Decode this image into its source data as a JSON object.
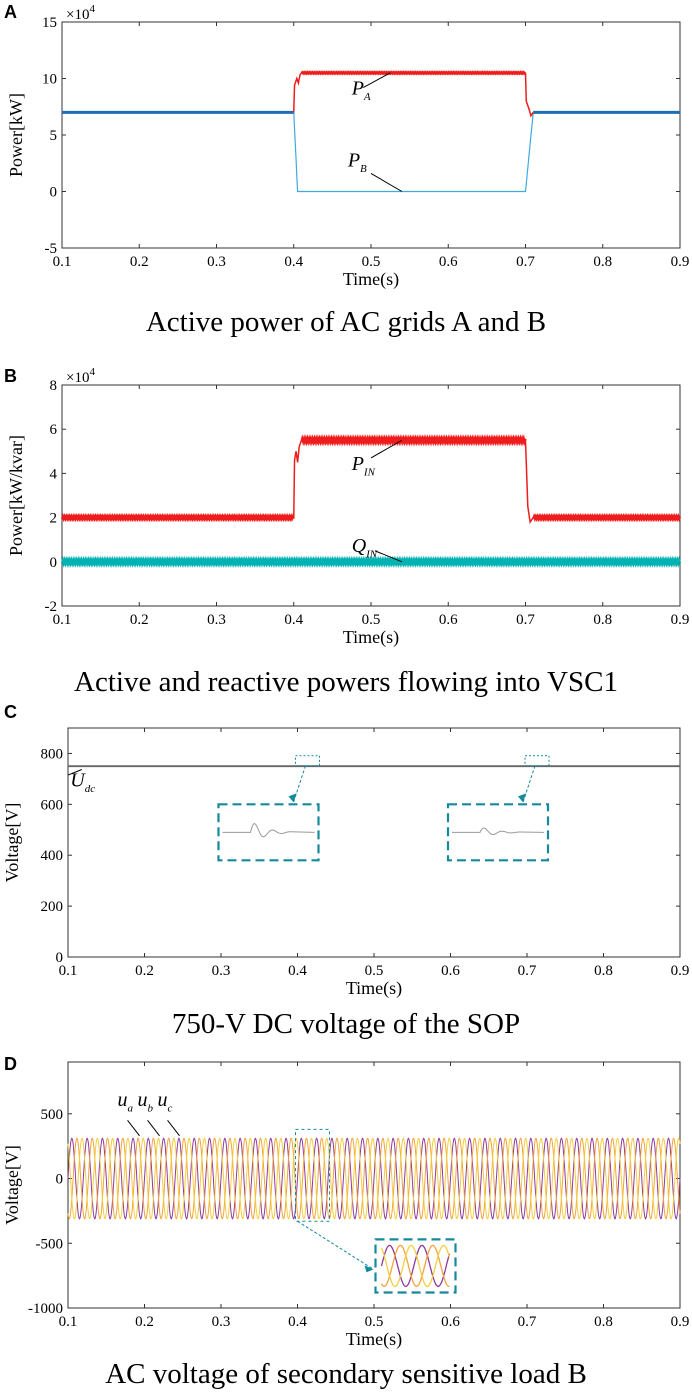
{
  "figure": {
    "panels": [
      {
        "letter": "A",
        "caption": "Active power of AC grids A and B"
      },
      {
        "letter": "B",
        "caption": "Active and reactive powers flowing into VSC1"
      },
      {
        "letter": "C",
        "caption": "750-V DC voltage of the SOP"
      },
      {
        "letter": "D",
        "caption": "AC voltage of secondary sensitive load B"
      }
    ]
  },
  "colors": {
    "red": "#ee1c1c",
    "blue": "#1f6fb5",
    "lightblue": "#3fa9e0",
    "cyan": "#00b2b2",
    "gray": "#666666",
    "teal": "#168a9c",
    "purple": "#8e3a9e",
    "orange": "#f4a43a",
    "yellow": "#f2cf3f"
  },
  "chart_data": [
    {
      "type": "line",
      "title": "Active power of AC grids A and B",
      "xlabel": "Time(s)",
      "ylabel": "Power[kW]",
      "xlim": [
        0.1,
        0.9
      ],
      "ylim": [
        -50000,
        150000
      ],
      "multiplier": "×10",
      "multiplier_exp": "4",
      "xticks": [
        "0.1",
        "0.2",
        "0.3",
        "0.4",
        "0.5",
        "0.6",
        "0.7",
        "0.8",
        "0.9"
      ],
      "yticks": [
        "-5",
        "0",
        "5",
        "10",
        "15"
      ],
      "series": [
        {
          "name": "P",
          "sub": "A",
          "x": [
            0.1,
            0.4,
            0.41,
            0.7,
            0.71,
            0.9
          ],
          "values": [
            70000,
            70000,
            105000,
            105000,
            70000,
            70000
          ]
        },
        {
          "name": "P",
          "sub": "B",
          "x": [
            0.1,
            0.4,
            0.405,
            0.7,
            0.71,
            0.9
          ],
          "values": [
            70000,
            70000,
            0,
            0,
            70000,
            70000
          ]
        }
      ]
    },
    {
      "type": "line",
      "title": "Active and reactive powers flowing into VSC1",
      "xlabel": "Time(s)",
      "ylabel": "Power[kW/kvar]",
      "xlim": [
        0.1,
        0.9
      ],
      "ylim": [
        -20000,
        80000
      ],
      "multiplier": "×10",
      "multiplier_exp": "4",
      "xticks": [
        "0.1",
        "0.2",
        "0.3",
        "0.4",
        "0.5",
        "0.6",
        "0.7",
        "0.8",
        "0.9"
      ],
      "yticks": [
        "-2",
        "0",
        "2",
        "4",
        "6",
        "8"
      ],
      "series": [
        {
          "name": "P",
          "sub": "IN",
          "x": [
            0.1,
            0.4,
            0.41,
            0.7,
            0.71,
            0.9
          ],
          "values": [
            20000,
            20000,
            55000,
            55000,
            20000,
            20000
          ]
        },
        {
          "name": "Q",
          "sub": "IN",
          "x": [
            0.1,
            0.9
          ],
          "values": [
            0,
            0
          ]
        }
      ]
    },
    {
      "type": "line",
      "title": "750-V DC voltage of the SOP",
      "xlabel": "Time(s)",
      "ylabel": "Voltage[V]",
      "xlim": [
        0.1,
        0.9
      ],
      "ylim": [
        0,
        900
      ],
      "xticks": [
        "0.1",
        "0.2",
        "0.3",
        "0.4",
        "0.5",
        "0.6",
        "0.7",
        "0.8",
        "0.9"
      ],
      "yticks": [
        "0",
        "200",
        "400",
        "600",
        "800"
      ],
      "series": [
        {
          "name": "U",
          "sub": "dc",
          "x": [
            0.1,
            0.9
          ],
          "values": [
            750,
            750
          ]
        }
      ],
      "insets": [
        {
          "event_time": 0.4
        },
        {
          "event_time": 0.7
        }
      ]
    },
    {
      "type": "line",
      "title": "AC voltage of secondary sensitive load B",
      "xlabel": "Time(s)",
      "ylabel": "Voltage[V]",
      "xlim": [
        0.1,
        0.9
      ],
      "ylim": [
        -1000,
        900
      ],
      "xticks": [
        "0.1",
        "0.2",
        "0.3",
        "0.4",
        "0.5",
        "0.6",
        "0.7",
        "0.8",
        "0.9"
      ],
      "yticks": [
        "-1000",
        "-500",
        "0",
        "500"
      ],
      "frequency_hz": 50,
      "amplitude": 311,
      "series": [
        {
          "name": "u",
          "sub": "a",
          "phase_deg": 0
        },
        {
          "name": "u",
          "sub": "b",
          "phase_deg": -120
        },
        {
          "name": "u",
          "sub": "c",
          "phase_deg": 120
        }
      ],
      "insets": [
        {
          "event_time": 0.4
        }
      ]
    }
  ]
}
